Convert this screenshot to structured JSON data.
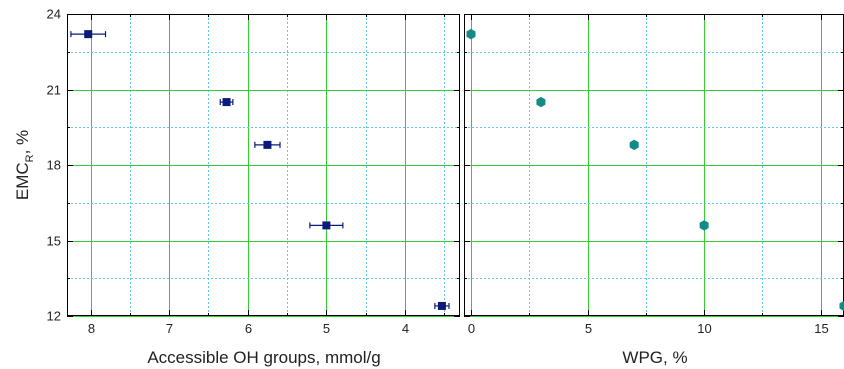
{
  "chart_data": [
    {
      "type": "scatter",
      "title": "",
      "xlabel": "Accessible OH groups, mmol/g",
      "ylabel": {
        "main": "EMC",
        "sub": "R",
        "suffix": ", %"
      },
      "x_reversed": true,
      "xlim": [
        8.3,
        3.3
      ],
      "ylim": [
        12,
        24
      ],
      "x_ticks": [
        8,
        7,
        6,
        5,
        4
      ],
      "y_ticks": [
        12,
        15,
        18,
        21,
        24
      ],
      "grid": true,
      "marker": "square",
      "color": "#0a1a7a",
      "series": [
        {
          "points": [
            {
              "x": 8.03,
              "y": 23.2,
              "xerr": 0.22
            },
            {
              "x": 6.27,
              "y": 20.5,
              "xerr": 0.08
            },
            {
              "x": 5.75,
              "y": 18.8,
              "xerr": 0.16
            },
            {
              "x": 5.0,
              "y": 15.6,
              "xerr": 0.21
            },
            {
              "x": 3.53,
              "y": 12.4,
              "xerr": 0.09
            }
          ]
        }
      ]
    },
    {
      "type": "scatter",
      "title": "",
      "xlabel": "WPG, %",
      "ylabel": "",
      "xlim": [
        -0.3,
        16
      ],
      "ylim": [
        12,
        24
      ],
      "x_ticks": [
        0,
        5,
        10,
        15
      ],
      "grid": true,
      "marker": "hexagon",
      "color": "#138a86",
      "series": [
        {
          "points": [
            {
              "x": 0,
              "y": 23.2
            },
            {
              "x": 3,
              "y": 20.5
            },
            {
              "x": 7,
              "y": 18.8
            },
            {
              "x": 10,
              "y": 15.6
            },
            {
              "x": 16,
              "y": 12.4
            }
          ]
        }
      ]
    }
  ],
  "colors": {
    "major_grid": "#33cc33",
    "minor_grid": "#66c8e8",
    "frame": "#000000"
  }
}
